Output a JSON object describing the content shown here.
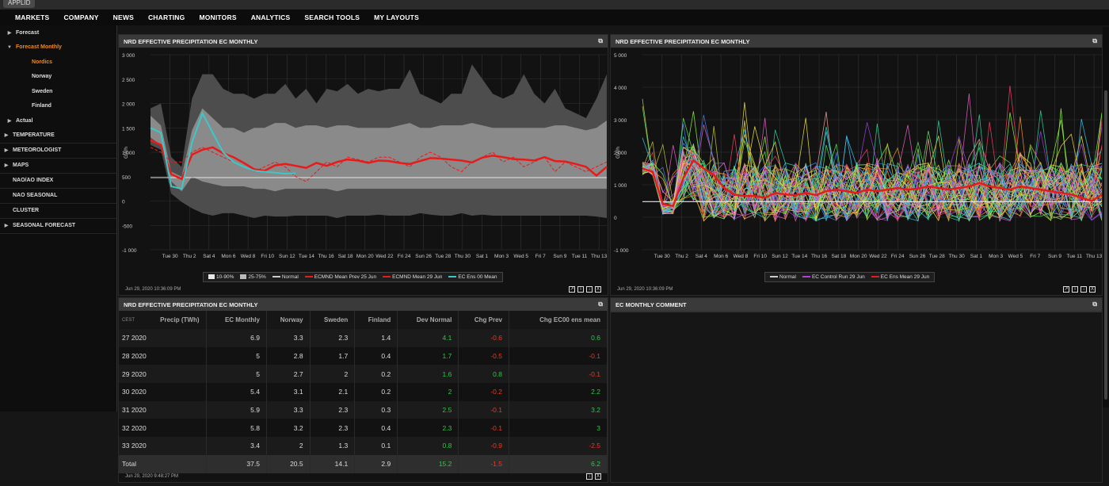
{
  "app": {
    "chip": "APPLID"
  },
  "nav": [
    "MARKETS",
    "COMPANY",
    "NEWS",
    "CHARTING",
    "MONITORS",
    "ANALYTICS",
    "SEARCH TOOLS",
    "MY LAYOUTS"
  ],
  "sidebar": [
    {
      "label": "Forecast",
      "arrow": "▶",
      "level": 1,
      "style": "normal"
    },
    {
      "label": "Forecast Monthly",
      "arrow": "▼",
      "level": 1,
      "style": "orange"
    },
    {
      "label": "Nordics",
      "arrow": "",
      "level": 2,
      "style": "orange"
    },
    {
      "label": "Norway",
      "arrow": "",
      "level": 2,
      "style": "normal"
    },
    {
      "label": "Sweden",
      "arrow": "",
      "level": 2,
      "style": "normal"
    },
    {
      "label": "Finland",
      "arrow": "",
      "level": 2,
      "style": "normal"
    },
    {
      "label": "Actual",
      "arrow": "▶",
      "level": 1,
      "style": "normal"
    },
    {
      "label": "TEMPERATURE",
      "arrow": "▶",
      "level": 0,
      "style": "normal"
    },
    {
      "label": "METEOROLOGIST",
      "arrow": "▶",
      "level": 0,
      "style": "normal"
    },
    {
      "label": "MAPS",
      "arrow": "▶",
      "level": 0,
      "style": "normal"
    },
    {
      "label": "NAO/AO INDEX",
      "arrow": "",
      "level": 0,
      "style": "normal"
    },
    {
      "label": "NAO SEASONAL",
      "arrow": "",
      "level": 0,
      "style": "normal"
    },
    {
      "label": "CLUSTER",
      "arrow": "",
      "level": 0,
      "style": "normal"
    },
    {
      "label": "SEASONAL FORECAST",
      "arrow": "▶",
      "level": 0,
      "style": "normal"
    }
  ],
  "panel1": {
    "title": "NRD EFFECTIVE PRECIPITATION EC MONTHLY",
    "timestamp": "Jun 29, 2020 10:36:09 PM"
  },
  "panel2": {
    "title": "NRD EFFECTIVE PRECIPITATION EC MONTHLY",
    "timestamp": "Jun 29, 2020 10:36:09 PM"
  },
  "panel3": {
    "title": "NRD EFFECTIVE PRECIPITATION EC MONTHLY",
    "timestamp": "Jun 29, 2020 9:48:27 PM"
  },
  "panel4": {
    "title": "EC MONTHLY COMMENT"
  },
  "colors": {
    "ens00": "#3cc8c8",
    "mean": "#e81b1b",
    "normal": "#e8e8e8",
    "green": "#34c34a",
    "red": "#e43a2a",
    "orange": "#f08a1a"
  },
  "chart_data": [
    {
      "type": "area",
      "ylabel": "GWh",
      "ylim": [
        -1000,
        3000
      ],
      "yticks": [
        "3 000",
        "2 500",
        "2 000",
        "1 500",
        "1 000",
        "500",
        "0",
        "-500",
        "-1 000"
      ],
      "ytick_values": [
        3000,
        2500,
        2000,
        1500,
        1000,
        500,
        0,
        -500,
        -1000
      ],
      "xticks": [
        "Tue 30",
        "Thu 2",
        "Sat 4",
        "Mon 6",
        "Wed 8",
        "Fri 10",
        "Sun 12",
        "Tue 14",
        "Thu 16",
        "Sat 18",
        "Mon 20",
        "Wed 22",
        "Fri 24",
        "Sun 26",
        "Tue 28",
        "Thu 30",
        "Sat 1",
        "Mon 3",
        "Wed 5",
        "Fri 7",
        "Sun 9",
        "Tue 11",
        "Thu 13"
      ],
      "legend": [
        "10-90%",
        "25-75%",
        "Normal",
        "ECMND Mean Prev 25 Jun",
        "ECMND Mean 29 Jun",
        "EC Ens 00 Mean"
      ],
      "series": [
        {
          "name": "10-90%",
          "low": [
            1150,
            1050,
            150,
            -20,
            -150,
            -250,
            -300,
            -250,
            -250,
            -300,
            -350,
            -300,
            -320,
            -320,
            -300,
            -300,
            -300,
            -300,
            -350,
            -300,
            -300,
            -300,
            -280,
            -300,
            -300,
            -300,
            -250,
            -280,
            -300,
            -300,
            -250,
            -300,
            -280,
            -300,
            -300,
            -300,
            -300,
            -300,
            -300,
            -300,
            -300,
            -300,
            -300,
            -320,
            -350
          ],
          "high": [
            1900,
            2000,
            900,
            700,
            2100,
            2600,
            2600,
            2300,
            2200,
            2200,
            2100,
            2200,
            2200,
            2400,
            2100,
            2300,
            2000,
            2300,
            2250,
            2400,
            2200,
            2300,
            2250,
            2300,
            2300,
            2700,
            2200,
            2100,
            2000,
            2200,
            2200,
            2800,
            2500,
            2200,
            2100,
            2200,
            2600,
            2200,
            2000,
            2300,
            1900,
            1800,
            1700,
            2100,
            2600
          ]
        },
        {
          "name": "25-75%",
          "low": [
            1300,
            1150,
            400,
            200,
            500,
            400,
            350,
            300,
            300,
            300,
            250,
            250,
            200,
            250,
            250,
            250,
            250,
            250,
            200,
            250,
            250,
            250,
            250,
            250,
            250,
            250,
            250,
            250,
            250,
            250,
            250,
            250,
            250,
            250,
            250,
            250,
            250,
            250,
            250,
            250,
            250,
            250,
            250,
            250,
            250
          ],
          "high": [
            1750,
            1550,
            600,
            500,
            1450,
            1900,
            1700,
            1500,
            1500,
            1400,
            1500,
            1500,
            1600,
            1600,
            1500,
            1550,
            1550,
            1500,
            1550,
            1550,
            1500,
            1500,
            1500,
            1500,
            1550,
            1600,
            1500,
            1500,
            1550,
            1550,
            1550,
            1600,
            1550,
            1500,
            1500,
            1500,
            1500,
            1500,
            1500,
            1550,
            1550,
            1500,
            1450,
            1500,
            1650
          ]
        },
        {
          "name": "Normal",
          "values": [
            480,
            480,
            480,
            480,
            480,
            480,
            480,
            480,
            480,
            480,
            480,
            480,
            480,
            480,
            480,
            480,
            480,
            480,
            480,
            480,
            480,
            480,
            480,
            480,
            480,
            480,
            480,
            480,
            480,
            480,
            480,
            480,
            480,
            480,
            480,
            480,
            480,
            480,
            480,
            480,
            480,
            480,
            480,
            480,
            480
          ]
        },
        {
          "name": "ECMND Mean Prev 25 Jun",
          "values": [
            1100,
            1000,
            800,
            800,
            1000,
            1100,
            1000,
            900,
            800,
            700,
            600,
            700,
            800,
            700,
            500,
            400,
            600,
            800,
            700,
            900,
            850,
            800,
            900,
            900,
            800,
            700,
            900,
            1000,
            900,
            700,
            600,
            800,
            900,
            1000,
            800,
            900,
            700,
            800,
            900,
            600,
            800,
            700,
            600,
            700,
            800
          ]
        },
        {
          "name": "ECMND Mean 29 Jun",
          "values": [
            1250,
            1150,
            550,
            450,
            950,
            1050,
            1100,
            980,
            900,
            780,
            650,
            620,
            730,
            760,
            720,
            680,
            780,
            720,
            800,
            850,
            830,
            780,
            830,
            820,
            780,
            760,
            820,
            880,
            870,
            850,
            830,
            790,
            890,
            930,
            900,
            860,
            850,
            830,
            900,
            820,
            810,
            760,
            700,
            520,
            700
          ]
        },
        {
          "name": "EC Ens 00 Mean",
          "values": [
            1500,
            1400,
            300,
            250,
            1200,
            1800,
            1400,
            1000,
            800,
            700,
            620,
            600,
            580,
            560,
            570
          ]
        }
      ]
    },
    {
      "type": "line",
      "ylabel": "GWh",
      "ylim": [
        -1000,
        5000
      ],
      "yticks": [
        "5 000",
        "4 000",
        "3 000",
        "2 000",
        "1 000",
        "0",
        "-1 000"
      ],
      "ytick_values": [
        5000,
        4000,
        3000,
        2000,
        1000,
        0,
        -1000
      ],
      "xticks": [
        "Tue 30",
        "Thu 2",
        "Sat 4",
        "Mon 6",
        "Wed 8",
        "Fri 10",
        "Sun 12",
        "Tue 14",
        "Thu 16",
        "Sat 18",
        "Mon 20",
        "Wed 22",
        "Fri 24",
        "Sun 26",
        "Tue 28",
        "Thu 30",
        "Sat 1",
        "Mon 3",
        "Wed 5",
        "Fri 7",
        "Sun 9",
        "Tue 11",
        "Thu 13"
      ],
      "legend": [
        "Normal",
        "EC Control Run 29 Jun",
        "EC Ens Mean 29 Jun"
      ],
      "members": 51,
      "series": [
        {
          "name": "Normal",
          "values": [
            480,
            480,
            480,
            480,
            480,
            480,
            480,
            480,
            480,
            480,
            480,
            480,
            480,
            480,
            480,
            480,
            480,
            480,
            480,
            480,
            480,
            480,
            480,
            480,
            480,
            480,
            480,
            480,
            480,
            480,
            480,
            480,
            480,
            480,
            480,
            480,
            480,
            480,
            480,
            480,
            480,
            480,
            480,
            480,
            480,
            480
          ]
        },
        {
          "name": "EC Ens Mean 29 Jun",
          "values": [
            1500,
            1400,
            400,
            350,
            1200,
            1750,
            1500,
            1300,
            900,
            700,
            650,
            650,
            600,
            750,
            700,
            680,
            750,
            680,
            800,
            850,
            800,
            750,
            850,
            800,
            850,
            900,
            850,
            880,
            950,
            900,
            850,
            900,
            950,
            1050,
            950,
            900,
            850,
            950,
            900,
            850,
            800,
            750,
            700,
            600,
            500,
            700
          ]
        }
      ]
    }
  ],
  "table": {
    "headers": [
      "CEST",
      "Precip (TWh)",
      "EC Monthly",
      "Norway",
      "Sweden",
      "Finland",
      "Dev Normal",
      "Chg Prev",
      "Chg EC00 ens mean"
    ],
    "rows": [
      {
        "week": "27 2020",
        "ec": "6.9",
        "no": "3.3",
        "se": "2.3",
        "fi": "1.4",
        "dev": "4.1",
        "chg": "-0.6",
        "chg00": "0.6"
      },
      {
        "week": "28 2020",
        "ec": "5",
        "no": "2.8",
        "se": "1.7",
        "fi": "0.4",
        "dev": "1.7",
        "chg": "-0.5",
        "chg00": "-0.1"
      },
      {
        "week": "29 2020",
        "ec": "5",
        "no": "2.7",
        "se": "2",
        "fi": "0.2",
        "dev": "1.6",
        "chg": "0.8",
        "chg00": "-0.1"
      },
      {
        "week": "30 2020",
        "ec": "5.4",
        "no": "3.1",
        "se": "2.1",
        "fi": "0.2",
        "dev": "2",
        "chg": "-0.2",
        "chg00": "2.2"
      },
      {
        "week": "31 2020",
        "ec": "5.9",
        "no": "3.3",
        "se": "2.3",
        "fi": "0.3",
        "dev": "2.5",
        "chg": "-0.1",
        "chg00": "3.2"
      },
      {
        "week": "32 2020",
        "ec": "5.8",
        "no": "3.2",
        "se": "2.3",
        "fi": "0.4",
        "dev": "2.3",
        "chg": "-0.1",
        "chg00": "3"
      },
      {
        "week": "33 2020",
        "ec": "3.4",
        "no": "2",
        "se": "1.3",
        "fi": "0.1",
        "dev": "0.8",
        "chg": "-0.9",
        "chg00": "-2.5"
      }
    ],
    "total": {
      "week": "Total",
      "ec": "37.5",
      "no": "20.5",
      "se": "14.1",
      "fi": "2.9",
      "dev": "15.2",
      "chg": "-1.5",
      "chg00": "6.2"
    }
  }
}
